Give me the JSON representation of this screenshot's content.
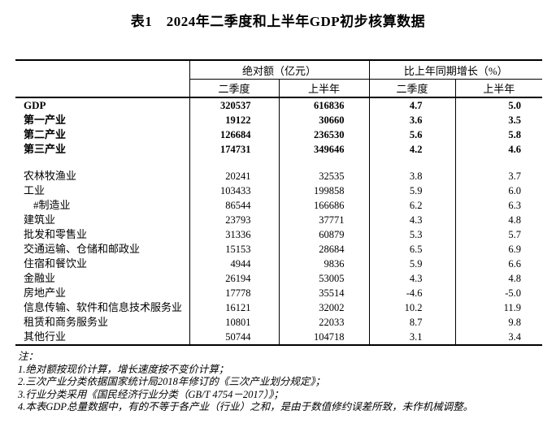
{
  "title": "表1　2024年二季度和上半年GDP初步核算数据",
  "table": {
    "header": {
      "abs_group": "绝对额（亿元）",
      "growth_group": "比上年同期增长（%）",
      "q2": "二季度",
      "h1": "上半年"
    },
    "rows": [
      {
        "label": "GDP",
        "abs_q2": "320537",
        "abs_h1": "616836",
        "g_q2": "4.7",
        "g_h1": "5.0",
        "bold": true
      },
      {
        "label": "第一产业",
        "abs_q2": "19122",
        "abs_h1": "30660",
        "g_q2": "3.6",
        "g_h1": "3.5",
        "bold": true
      },
      {
        "label": "第二产业",
        "abs_q2": "126684",
        "abs_h1": "236530",
        "g_q2": "5.6",
        "g_h1": "5.8",
        "bold": true
      },
      {
        "label": "第三产业",
        "abs_q2": "174731",
        "abs_h1": "349646",
        "g_q2": "4.2",
        "g_h1": "4.6",
        "bold": true
      },
      {
        "spacer": true
      },
      {
        "label": "农林牧渔业",
        "abs_q2": "20241",
        "abs_h1": "32535",
        "g_q2": "3.8",
        "g_h1": "3.7"
      },
      {
        "label": "工业",
        "abs_q2": "103433",
        "abs_h1": "199858",
        "g_q2": "5.9",
        "g_h1": "6.0"
      },
      {
        "label": "#制造业",
        "abs_q2": "86544",
        "abs_h1": "166686",
        "g_q2": "6.2",
        "g_h1": "6.3",
        "indent": true
      },
      {
        "label": "建筑业",
        "abs_q2": "23793",
        "abs_h1": "37771",
        "g_q2": "4.3",
        "g_h1": "4.8"
      },
      {
        "label": "批发和零售业",
        "abs_q2": "31336",
        "abs_h1": "60879",
        "g_q2": "5.3",
        "g_h1": "5.7"
      },
      {
        "label": "交通运输、仓储和邮政业",
        "abs_q2": "15153",
        "abs_h1": "28684",
        "g_q2": "6.5",
        "g_h1": "6.9"
      },
      {
        "label": "住宿和餐饮业",
        "abs_q2": "4944",
        "abs_h1": "9836",
        "g_q2": "5.9",
        "g_h1": "6.6"
      },
      {
        "label": "金融业",
        "abs_q2": "26194",
        "abs_h1": "53005",
        "g_q2": "4.3",
        "g_h1": "4.8"
      },
      {
        "label": "房地产业",
        "abs_q2": "17778",
        "abs_h1": "35514",
        "g_q2": "-4.6",
        "g_h1": "-5.0"
      },
      {
        "label": "信息传输、软件和信息技术服务业",
        "abs_q2": "16121",
        "abs_h1": "32002",
        "g_q2": "10.2",
        "g_h1": "11.9"
      },
      {
        "label": "租赁和商务服务业",
        "abs_q2": "10801",
        "abs_h1": "22033",
        "g_q2": "8.7",
        "g_h1": "9.8"
      },
      {
        "label": "其他行业",
        "abs_q2": "50744",
        "abs_h1": "104718",
        "g_q2": "3.1",
        "g_h1": "3.4"
      }
    ]
  },
  "notes": {
    "heading": "注：",
    "line1": "1.绝对额按现价计算，增长速度按不变价计算；",
    "line2": "2.三次产业分类依据国家统计局2018年修订的《三次产业划分规定》；",
    "line3": "3.行业分类采用《国民经济行业分类（GB/T 4754－2017）》；",
    "line4": "4.本表GDP总量数据中，有的不等于各产业（行业）之和，是由于数值修约误差所致，未作机械调整。"
  }
}
